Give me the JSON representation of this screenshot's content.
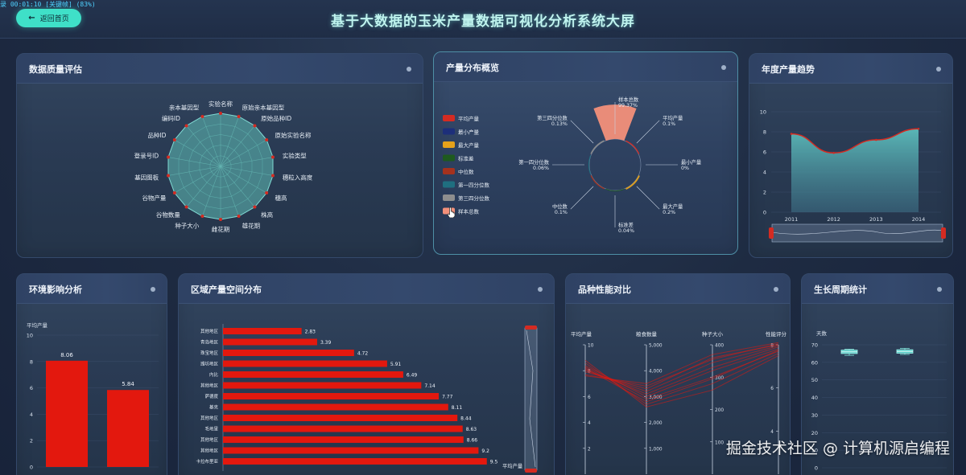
{
  "header": {
    "recording_text": "录 00:01:10 [关键帧] (83%)",
    "back_button": "返回首页",
    "title": "基于大数据的玉米产量数据可视化分析系统大屏"
  },
  "panels": {
    "quality": "数据质量评估",
    "distribution": "产量分布概览",
    "yearly": "年度产量趋势",
    "environment": "环境影响分析",
    "regional": "区域产量空间分布",
    "variety": "品种性能对比",
    "growth": "生长周期统计"
  },
  "colors": {
    "accent": "#3fe0c8",
    "bar_red": "#e3180e",
    "radar_teal": "#5fb9b5",
    "title_glow": "#bff3ee"
  },
  "watermark": "掘金技术社区 @ 计算机源启编程",
  "chart_data": [
    {
      "id": "radar",
      "type": "radar",
      "indicators": [
        "实验名称",
        "原始亲本基因型",
        "原始品种ID",
        "原始实验名称",
        "实验类型",
        "穗粒入高度",
        "穗高",
        "株高",
        "雄花期",
        "雌花期",
        "种子大小",
        "谷物数量",
        "谷物产量",
        "基因图板",
        "登录号ID",
        "品种ID",
        "编码ID",
        "亲本基因型"
      ],
      "values": [
        1,
        1,
        1,
        1,
        1,
        1,
        1,
        1,
        1,
        1,
        1,
        1,
        1,
        1,
        1,
        1,
        1,
        1
      ],
      "max": 1
    },
    {
      "id": "rose",
      "type": "pie",
      "title": "",
      "legend": [
        {
          "name": "平均产量",
          "color": "#d42b22"
        },
        {
          "name": "最小产量",
          "color": "#1d2f7a"
        },
        {
          "name": "最大产量",
          "color": "#e6a21a"
        },
        {
          "name": "标准差",
          "color": "#1e5a1e"
        },
        {
          "name": "中位数",
          "color": "#a5321e"
        },
        {
          "name": "第一四分位数",
          "color": "#1f6f80"
        },
        {
          "name": "第三四分位数",
          "color": "#8e8e8e"
        },
        {
          "name": "样本总数",
          "color": "#f3907a"
        }
      ],
      "slices": [
        {
          "name": "样本总数",
          "pct": "99.37%",
          "value": 99.37
        },
        {
          "name": "平均产量",
          "pct": "0.1%",
          "value": 0.1
        },
        {
          "name": "最小产量",
          "pct": "0%",
          "value": 0
        },
        {
          "name": "最大产量",
          "pct": "0.2%",
          "value": 0.2
        },
        {
          "name": "标准差",
          "pct": "0.04%",
          "value": 0.04
        },
        {
          "name": "中位数",
          "pct": "0.1%",
          "value": 0.1
        },
        {
          "name": "第一四分位数",
          "pct": "0.06%",
          "value": 0.06
        },
        {
          "name": "第三四分位数",
          "pct": "0.13%",
          "value": 0.13
        }
      ]
    },
    {
      "id": "yearly",
      "type": "area",
      "categories": [
        "2011",
        "2012",
        "2013",
        "2014"
      ],
      "values": [
        7.8,
        5.9,
        7.2,
        8.3
      ],
      "yticks": [
        "0",
        "2",
        "4",
        "6",
        "8",
        "10"
      ],
      "ylim": [
        0,
        10
      ]
    },
    {
      "id": "env",
      "type": "bar",
      "ylabel": "平均产量",
      "values": [
        8.06,
        5.84
      ],
      "labels": [
        "8.06",
        "5.84"
      ],
      "yticks": [
        "0",
        "2",
        "4",
        "6",
        "8",
        "10"
      ],
      "ylim": [
        0,
        10
      ]
    },
    {
      "id": "regional",
      "type": "bar",
      "orientation": "horizontal",
      "categories": [
        "其他地区",
        "青岛地区",
        "珠宝地区",
        "潍坊地区",
        "内比",
        "其他地区",
        "萨德度",
        "基克",
        "其他地区",
        "毛地里",
        "其他地区",
        "其他地区",
        "卡拉布里亚"
      ],
      "values": [
        2.83,
        3.39,
        4.72,
        5.91,
        6.49,
        7.14,
        7.77,
        8.11,
        8.44,
        8.63,
        8.66,
        9.2,
        9.5
      ],
      "labels": [
        "2.83",
        "3.39",
        "4.72",
        "5.91",
        "6.49",
        "7.14",
        "7.77",
        "8.11",
        "8.44",
        "8.63",
        "8.66",
        "9.2",
        "9.5"
      ],
      "zoom_label": "平均产量"
    },
    {
      "id": "variety",
      "type": "parallel",
      "axes": [
        {
          "name": "平均产量",
          "ticks": [
            "2",
            "4",
            "6",
            "8",
            "10"
          ],
          "min": 0,
          "max": 10
        },
        {
          "name": "粮食数量",
          "ticks": [
            "1,000",
            "2,000",
            "3,000",
            "4,000",
            "5,000"
          ],
          "min": 0,
          "max": 5000
        },
        {
          "name": "种子大小",
          "ticks": [
            "100",
            "200",
            "300",
            "400"
          ],
          "min": 0,
          "max": 400
        },
        {
          "name": "性能评分",
          "ticks": [
            "4",
            "6",
            "8"
          ],
          "min": 2,
          "max": 8
        }
      ],
      "lines": [
        [
          8.1,
          3100,
          330,
          7.9
        ],
        [
          8.3,
          2900,
          300,
          7.7
        ],
        [
          7.9,
          3300,
          360,
          8.0
        ],
        [
          8.6,
          2700,
          280,
          7.6
        ],
        [
          7.6,
          3500,
          370,
          8.1
        ],
        [
          8.4,
          3000,
          320,
          7.8
        ],
        [
          8.0,
          3200,
          345,
          7.95
        ],
        [
          8.8,
          2600,
          260,
          7.5
        ],
        [
          7.7,
          3400,
          355,
          8.05
        ],
        [
          8.2,
          2800,
          295,
          7.75
        ]
      ]
    },
    {
      "id": "growth",
      "type": "boxplot",
      "ylabel": "天数",
      "yticks": [
        "0",
        "10",
        "20",
        "30",
        "40",
        "50",
        "60",
        "70"
      ],
      "ylim": [
        0,
        70
      ],
      "boxes": [
        {
          "min": 64,
          "q1": 65,
          "median": 66,
          "q3": 67,
          "max": 67.5
        },
        {
          "min": 64.5,
          "q1": 65.2,
          "median": 66.2,
          "q3": 67.2,
          "max": 68
        }
      ]
    }
  ]
}
